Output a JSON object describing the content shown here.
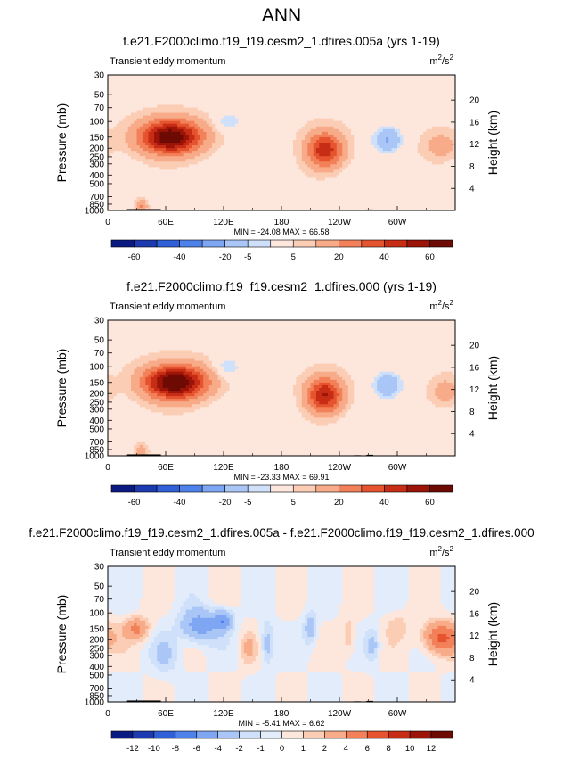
{
  "main_title": "ANN",
  "chart_data": [
    {
      "type": "heatmap",
      "title": "f.e21.F2000climo.f19_f19.cesm2_1.dfires.005a (yrs 1-19)",
      "subtitle": "Transient eddy momentum",
      "units_base": "m",
      "units_exp1": "2",
      "units_mid": "/s",
      "units_exp2": "2",
      "ylabel": "Pressure (mb)",
      "ylabel_right": "Height (km)",
      "pressure_ticks": [
        "30",
        "50",
        "70",
        "100",
        "150",
        "200",
        "250",
        "300",
        "400",
        "500",
        "700",
        "850",
        "1000"
      ],
      "pressure_values": [
        30,
        50,
        70,
        100,
        150,
        200,
        250,
        300,
        400,
        500,
        700,
        850,
        1000
      ],
      "height_ticks": [
        "20",
        "16",
        "12",
        "8",
        "4"
      ],
      "height_values": [
        20,
        16,
        12,
        8,
        4
      ],
      "x_ticks": [
        "0",
        "60E",
        "120E",
        "180",
        "120W",
        "60W"
      ],
      "x_values": [
        0,
        60,
        120,
        180,
        240,
        300
      ],
      "xlim": [
        0,
        360
      ],
      "ylim": [
        1000,
        30
      ],
      "min_max": "MIN = -24.08   MAX = 66.58",
      "colorbar_labels": [
        "-60",
        "-40",
        "-20",
        "-5",
        "5",
        "20",
        "40",
        "60"
      ],
      "colorbar_colors": [
        "#0a1a82",
        "#1d3ab0",
        "#2f60d8",
        "#4e82ea",
        "#7ea6f2",
        "#a9c6f6",
        "#cfe0fa",
        "#fde6dc",
        "#fbcdb5",
        "#f8ab88",
        "#f2815a",
        "#e5532f",
        "#c72d15",
        "#9c1407",
        "#6e0a04"
      ],
      "features": [
        {
          "lon": 65,
          "p": 150,
          "v": 66.6,
          "sx": 22,
          "sy": 0.3
        },
        {
          "lon": 225,
          "p": 210,
          "v": 45,
          "sx": 13,
          "sy": 0.32
        },
        {
          "lon": 125,
          "p": 100,
          "v": -14,
          "sx": 9,
          "sy": 0.18
        },
        {
          "lon": 290,
          "p": 160,
          "v": -24,
          "sx": 11,
          "sy": 0.25
        },
        {
          "lon": 345,
          "p": 190,
          "v": 12,
          "sx": 12,
          "sy": 0.25
        },
        {
          "lon": 35,
          "p": 900,
          "v": 18,
          "sx": 4,
          "sy": 0.12
        },
        {
          "lon": 160,
          "p": 300,
          "v": -4,
          "sx": 18,
          "sy": 0.3
        }
      ]
    },
    {
      "type": "heatmap",
      "title": "f.e21.F2000climo.f19_f19.cesm2_1.dfires.000 (yrs 1-19)",
      "subtitle": "Transient eddy momentum",
      "units_base": "m",
      "units_exp1": "2",
      "units_mid": "/s",
      "units_exp2": "2",
      "ylabel": "Pressure (mb)",
      "ylabel_right": "Height (km)",
      "pressure_ticks": [
        "30",
        "50",
        "70",
        "100",
        "150",
        "200",
        "250",
        "300",
        "400",
        "500",
        "700",
        "850",
        "1000"
      ],
      "pressure_values": [
        30,
        50,
        70,
        100,
        150,
        200,
        250,
        300,
        400,
        500,
        700,
        850,
        1000
      ],
      "height_ticks": [
        "20",
        "16",
        "12",
        "8",
        "4"
      ],
      "height_values": [
        20,
        16,
        12,
        8,
        4
      ],
      "x_ticks": [
        "0",
        "60E",
        "120E",
        "180",
        "120W",
        "60W"
      ],
      "x_values": [
        0,
        60,
        120,
        180,
        240,
        300
      ],
      "xlim": [
        0,
        360
      ],
      "ylim": [
        1000,
        30
      ],
      "min_max": "MIN = -23.33   MAX = 69.91",
      "colorbar_labels": [
        "-60",
        "-40",
        "-20",
        "-5",
        "5",
        "20",
        "40",
        "60"
      ],
      "colorbar_colors": [
        "#0a1a82",
        "#1d3ab0",
        "#2f60d8",
        "#4e82ea",
        "#7ea6f2",
        "#a9c6f6",
        "#cfe0fa",
        "#fde6dc",
        "#fbcdb5",
        "#f8ab88",
        "#f2815a",
        "#e5532f",
        "#c72d15",
        "#9c1407",
        "#6e0a04"
      ],
      "features": [
        {
          "lon": 70,
          "p": 150,
          "v": 69.9,
          "sx": 22,
          "sy": 0.3
        },
        {
          "lon": 225,
          "p": 210,
          "v": 48,
          "sx": 13,
          "sy": 0.32
        },
        {
          "lon": 125,
          "p": 100,
          "v": -14,
          "sx": 9,
          "sy": 0.18
        },
        {
          "lon": 290,
          "p": 160,
          "v": -23,
          "sx": 11,
          "sy": 0.25
        },
        {
          "lon": 350,
          "p": 190,
          "v": 12,
          "sx": 10,
          "sy": 0.25
        },
        {
          "lon": 35,
          "p": 900,
          "v": 16,
          "sx": 4,
          "sy": 0.12
        },
        {
          "lon": 170,
          "p": 300,
          "v": -4,
          "sx": 18,
          "sy": 0.3
        }
      ]
    },
    {
      "type": "heatmap",
      "title": "f.e21.F2000climo.f19_f19.cesm2_1.dfires.005a - f.e21.F2000climo.f19_f19.cesm2_1.dfires.000",
      "subtitle": "Transient eddy momentum",
      "units_base": "m",
      "units_exp1": "2",
      "units_mid": "/s",
      "units_exp2": "2",
      "ylabel": "Pressure (mb)",
      "ylabel_right": "Height (km)",
      "pressure_ticks": [
        "30",
        "50",
        "70",
        "100",
        "150",
        "200",
        "250",
        "300",
        "400",
        "500",
        "700",
        "850",
        "1000"
      ],
      "pressure_values": [
        30,
        50,
        70,
        100,
        150,
        200,
        250,
        300,
        400,
        500,
        700,
        850,
        1000
      ],
      "height_ticks": [
        "20",
        "16",
        "12",
        "8",
        "4"
      ],
      "height_values": [
        20,
        16,
        12,
        8,
        4
      ],
      "x_ticks": [
        "0",
        "60E",
        "120E",
        "180",
        "120W",
        "60W"
      ],
      "x_values": [
        0,
        60,
        120,
        180,
        240,
        300
      ],
      "xlim": [
        0,
        360
      ],
      "ylim": [
        1000,
        30
      ],
      "min_max": "MIN = -5.41   MAX = 6.62",
      "colorbar_labels": [
        "-12",
        "-10",
        "-8",
        "-6",
        "-4",
        "-2",
        "-1",
        "0",
        "1",
        "2",
        "4",
        "6",
        "8",
        "10",
        "12"
      ],
      "colorbar_colors": [
        "#0a1a82",
        "#1d3ab0",
        "#2f60d8",
        "#4e82ea",
        "#7ea6f2",
        "#a9c6f6",
        "#cfe0fa",
        "#e3ecfb",
        "#fde6dc",
        "#fbcdb5",
        "#f8ab88",
        "#f2815a",
        "#e5532f",
        "#c72d15",
        "#9c1407",
        "#6e0a04"
      ],
      "features": [
        {
          "lon": 30,
          "p": 150,
          "v": 4.5,
          "sx": 9,
          "sy": 0.2
        },
        {
          "lon": 95,
          "p": 140,
          "v": -5.4,
          "sx": 14,
          "sy": 0.3
        },
        {
          "lon": 120,
          "p": 120,
          "v": -5,
          "sx": 7,
          "sy": 0.18
        },
        {
          "lon": 345,
          "p": 190,
          "v": 6.6,
          "sx": 13,
          "sy": 0.28
        },
        {
          "lon": 165,
          "p": 220,
          "v": -3,
          "sx": 5,
          "sy": 0.4
        },
        {
          "lon": 210,
          "p": 150,
          "v": -3,
          "sx": 5,
          "sy": 0.3
        },
        {
          "lon": 250,
          "p": 180,
          "v": 2,
          "sx": 5,
          "sy": 0.35
        },
        {
          "lon": 275,
          "p": 230,
          "v": -2.5,
          "sx": 5,
          "sy": 0.3
        },
        {
          "lon": 60,
          "p": 300,
          "v": -2,
          "sx": 10,
          "sy": 0.35
        },
        {
          "lon": 145,
          "p": 250,
          "v": 2,
          "sx": 6,
          "sy": 0.3
        },
        {
          "lon": 300,
          "p": 140,
          "v": 1.5,
          "sx": 8,
          "sy": 0.25
        }
      ]
    }
  ]
}
